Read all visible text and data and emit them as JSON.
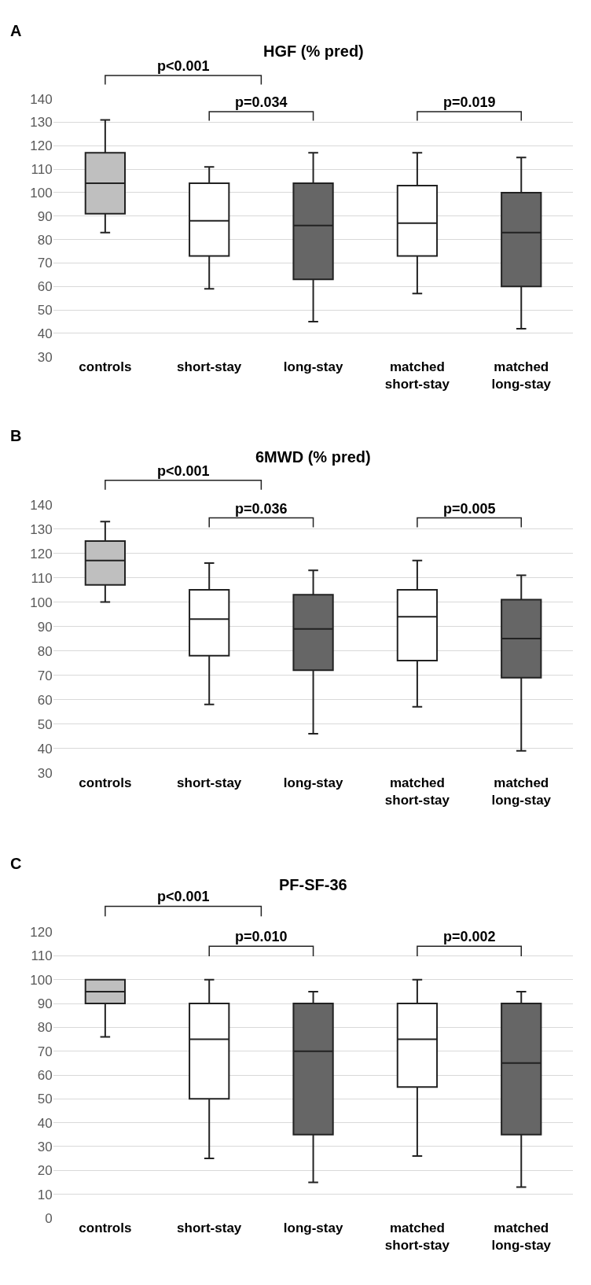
{
  "chart_data": [
    {
      "type": "box",
      "title": "HGF (% pred)",
      "categories": [
        "controls",
        "short-stay",
        "long-stay",
        "matched short-stay",
        "matched long-stay"
      ],
      "colors": [
        "#bfbfbf",
        "#ffffff",
        "#666666",
        "#ffffff",
        "#666666"
      ],
      "boxes": [
        {
          "low": 83,
          "q1": 91,
          "median": 104,
          "q3": 117,
          "high": 131
        },
        {
          "low": 59,
          "q1": 73,
          "median": 88,
          "q3": 104,
          "high": 111
        },
        {
          "low": 45,
          "q1": 63,
          "median": 86,
          "q3": 104,
          "high": 117
        },
        {
          "low": 57,
          "q1": 73,
          "median": 87,
          "q3": 103,
          "high": 117
        },
        {
          "low": 42,
          "q1": 60,
          "median": 83,
          "q3": 100,
          "high": 115
        }
      ],
      "ylim": [
        30,
        140
      ],
      "yticks": [
        30,
        40,
        50,
        60,
        70,
        80,
        90,
        100,
        110,
        120,
        130,
        140
      ],
      "grid": "y",
      "annotations": [
        "A",
        "p<0.001",
        "p=0.034",
        "p=0.019"
      ]
    },
    {
      "type": "box",
      "title": "6MWD (% pred)",
      "categories": [
        "controls",
        "short-stay",
        "long-stay",
        "matched short-stay",
        "matched long-stay"
      ],
      "colors": [
        "#bfbfbf",
        "#ffffff",
        "#666666",
        "#ffffff",
        "#666666"
      ],
      "boxes": [
        {
          "low": 100,
          "q1": 107,
          "median": 117,
          "q3": 125,
          "high": 133
        },
        {
          "low": 58,
          "q1": 78,
          "median": 93,
          "q3": 105,
          "high": 116
        },
        {
          "low": 46,
          "q1": 72,
          "median": 89,
          "q3": 103,
          "high": 113
        },
        {
          "low": 57,
          "q1": 76,
          "median": 94,
          "q3": 105,
          "high": 117
        },
        {
          "low": 39,
          "q1": 69,
          "median": 85,
          "q3": 101,
          "high": 111
        }
      ],
      "ylim": [
        30,
        140
      ],
      "yticks": [
        30,
        40,
        50,
        60,
        70,
        80,
        90,
        100,
        110,
        120,
        130,
        140
      ],
      "grid": "y",
      "annotations": [
        "B",
        "p<0.001",
        "p=0.036",
        "p=0.005"
      ]
    },
    {
      "type": "box",
      "title": "PF-SF-36",
      "categories": [
        "controls",
        "short-stay",
        "long-stay",
        "matched short-stay",
        "matched long-stay"
      ],
      "colors": [
        "#bfbfbf",
        "#ffffff",
        "#666666",
        "#ffffff",
        "#666666"
      ],
      "boxes": [
        {
          "low": 76,
          "q1": 90,
          "median": 95,
          "q3": 100,
          "high": 100
        },
        {
          "low": 25,
          "q1": 50,
          "median": 75,
          "q3": 90,
          "high": 100
        },
        {
          "low": 15,
          "q1": 35,
          "median": 70,
          "q3": 90,
          "high": 95
        },
        {
          "low": 26,
          "q1": 55,
          "median": 75,
          "q3": 90,
          "high": 100
        },
        {
          "low": 13,
          "q1": 35,
          "median": 65,
          "q3": 90,
          "high": 95
        }
      ],
      "ylim": [
        0,
        120
      ],
      "yticks": [
        0,
        10,
        20,
        30,
        40,
        50,
        60,
        70,
        80,
        90,
        100,
        110,
        120
      ],
      "grid": "y",
      "annotations": [
        "C",
        "p<0.001",
        "p=0.010",
        "p=0.002"
      ]
    }
  ]
}
